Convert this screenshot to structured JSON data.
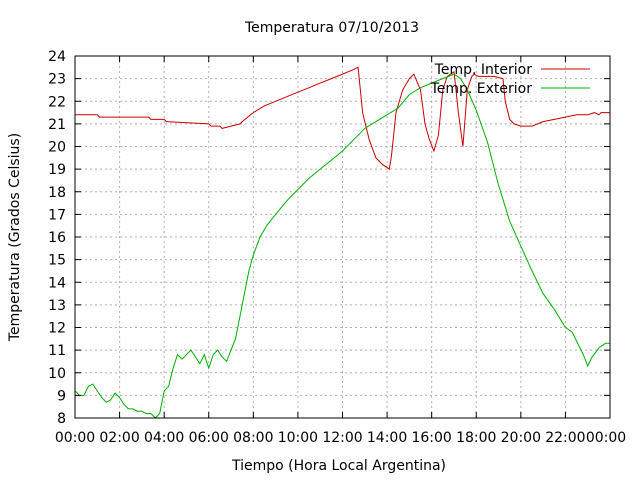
{
  "chart_data": {
    "type": "line",
    "title": "Temperatura 07/10/2013",
    "xlabel": "Tiempo (Hora Local Argentina)",
    "ylabel": "Temperatura (Grados Celsius)",
    "xlim": [
      0,
      24
    ],
    "ylim": [
      8,
      24
    ],
    "grid": true,
    "legend_position": "top-right",
    "x_ticks": [
      {
        "value": 0,
        "label": "00:00"
      },
      {
        "value": 2,
        "label": "02:00"
      },
      {
        "value": 4,
        "label": "04:00"
      },
      {
        "value": 6,
        "label": "06:00"
      },
      {
        "value": 8,
        "label": "08:00"
      },
      {
        "value": 10,
        "label": "10:00"
      },
      {
        "value": 12,
        "label": "12:00"
      },
      {
        "value": 14,
        "label": "14:00"
      },
      {
        "value": 16,
        "label": "16:00"
      },
      {
        "value": 18,
        "label": "18:00"
      },
      {
        "value": 20,
        "label": "20:00"
      },
      {
        "value": 22,
        "label": "22:00"
      },
      {
        "value": 24,
        "label": "00:00"
      }
    ],
    "y_ticks": [
      8,
      9,
      10,
      11,
      12,
      13,
      14,
      15,
      16,
      17,
      18,
      19,
      20,
      21,
      22,
      23,
      24
    ],
    "series": [
      {
        "name": "Temp. Interior",
        "color": "#cc0000",
        "x": [
          0,
          1.0,
          1.1,
          3.3,
          3.4,
          4.0,
          4.1,
          6.0,
          6.1,
          6.5,
          6.6,
          7.4,
          7.5,
          8.0,
          8.5,
          9.0,
          9.5,
          10.0,
          10.5,
          11.0,
          11.5,
          12.0,
          12.5,
          12.7,
          12.9,
          13.2,
          13.5,
          13.8,
          14.1,
          14.2,
          14.4,
          14.7,
          15.0,
          15.2,
          15.5,
          15.7,
          15.9,
          16.1,
          16.3,
          16.5,
          16.7,
          17.0,
          17.2,
          17.4,
          17.6,
          17.8,
          17.9,
          18.1,
          18.4,
          18.8,
          19.2,
          19.3,
          19.5,
          19.7,
          20.0,
          20.3,
          20.5,
          21.0,
          21.5,
          22.0,
          22.5,
          23.0,
          23.3,
          23.5,
          23.6,
          24.0
        ],
        "values": [
          21.4,
          21.4,
          21.3,
          21.3,
          21.2,
          21.2,
          21.1,
          21.0,
          20.9,
          20.9,
          20.8,
          21.0,
          21.1,
          21.5,
          21.8,
          22.0,
          22.2,
          22.4,
          22.6,
          22.8,
          23.0,
          23.2,
          23.4,
          23.5,
          21.5,
          20.3,
          19.5,
          19.2,
          19.0,
          19.6,
          21.5,
          22.5,
          23.0,
          23.2,
          22.5,
          21.0,
          20.3,
          19.8,
          20.5,
          22.5,
          23.1,
          23.3,
          21.5,
          20.0,
          22.5,
          23.1,
          23.2,
          23.1,
          23.1,
          23.1,
          23.0,
          22.0,
          21.2,
          21.0,
          20.9,
          20.9,
          20.9,
          21.1,
          21.2,
          21.3,
          21.4,
          21.4,
          21.5,
          21.4,
          21.5,
          21.5
        ]
      },
      {
        "name": "Temp. Exterior",
        "color": "#00b000",
        "x": [
          0,
          0.2,
          0.4,
          0.6,
          0.8,
          1.0,
          1.2,
          1.4,
          1.6,
          1.8,
          2.0,
          2.2,
          2.4,
          2.6,
          2.8,
          3.0,
          3.2,
          3.4,
          3.6,
          3.8,
          4.0,
          4.2,
          4.4,
          4.6,
          4.8,
          5.0,
          5.2,
          5.4,
          5.6,
          5.8,
          6.0,
          6.2,
          6.4,
          6.6,
          6.8,
          7.0,
          7.2,
          7.4,
          7.6,
          7.8,
          8.0,
          8.3,
          8.6,
          9.0,
          9.5,
          10.0,
          10.5,
          11.0,
          11.5,
          12.0,
          12.5,
          13.0,
          13.5,
          14.0,
          14.5,
          15.0,
          15.5,
          16.0,
          16.5,
          17.0,
          17.3,
          17.6,
          18.0,
          18.5,
          19.0,
          19.5,
          20.0,
          20.5,
          21.0,
          21.5,
          22.0,
          22.3,
          22.6,
          22.8,
          23.0,
          23.2,
          23.5,
          23.8,
          24.0
        ],
        "values": [
          9.2,
          9.0,
          9.0,
          9.4,
          9.5,
          9.2,
          8.9,
          8.7,
          8.8,
          9.1,
          8.9,
          8.6,
          8.4,
          8.4,
          8.3,
          8.3,
          8.2,
          8.2,
          8.0,
          8.2,
          9.2,
          9.4,
          10.2,
          10.8,
          10.6,
          10.8,
          11.0,
          10.7,
          10.4,
          10.8,
          10.2,
          10.8,
          11.0,
          10.7,
          10.5,
          11.0,
          11.5,
          12.5,
          13.5,
          14.5,
          15.2,
          16.0,
          16.5,
          17.0,
          17.6,
          18.1,
          18.6,
          19.0,
          19.4,
          19.8,
          20.3,
          20.8,
          21.1,
          21.4,
          21.7,
          22.3,
          22.6,
          22.8,
          23.0,
          23.2,
          23.0,
          22.5,
          21.6,
          20.2,
          18.3,
          16.7,
          15.6,
          14.5,
          13.5,
          12.8,
          12.0,
          11.8,
          11.2,
          10.8,
          10.3,
          10.7,
          11.1,
          11.3,
          11.3
        ]
      }
    ]
  }
}
